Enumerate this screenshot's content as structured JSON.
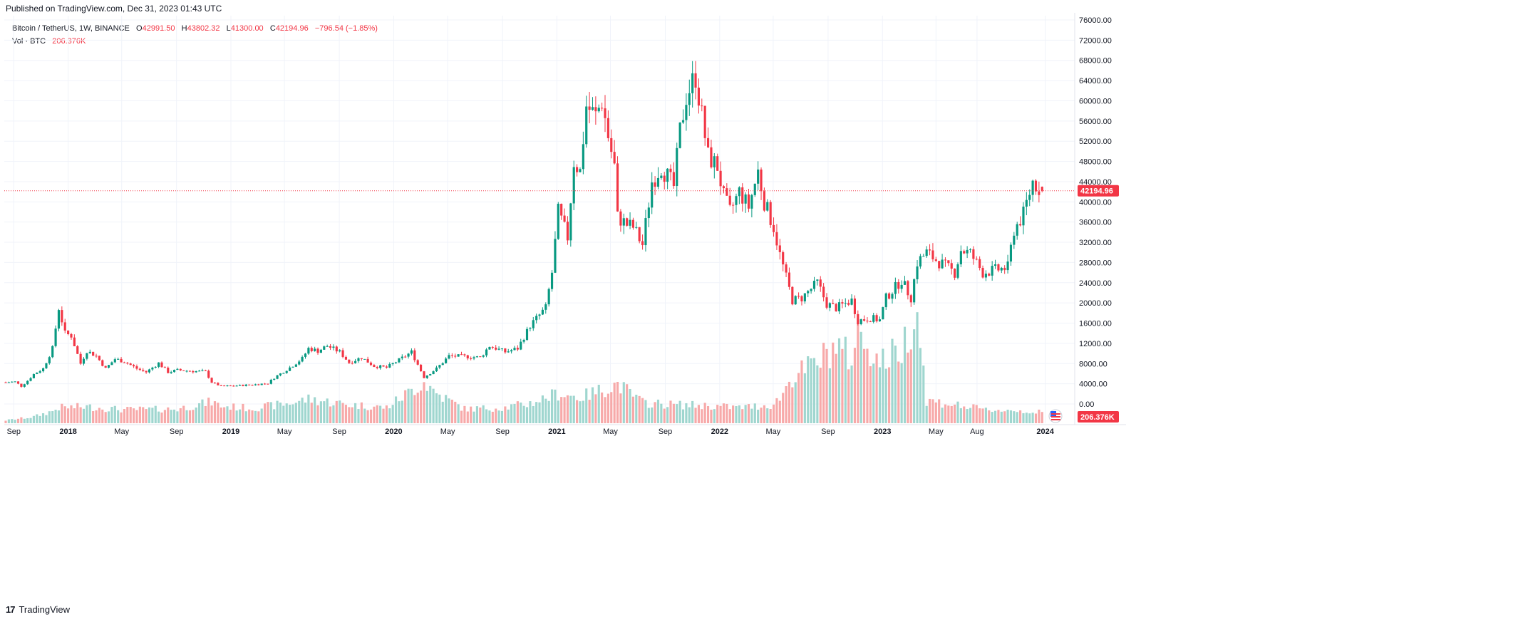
{
  "header": {
    "published": "Published on TradingView.com, Dec 31, 2023 01:43 UTC"
  },
  "legend": {
    "symbol": "Bitcoin / TetherUS, 1W, BINANCE",
    "o_label": "O",
    "o_value": "42991.50",
    "h_label": "H",
    "h_value": "43802.32",
    "l_label": "L",
    "l_value": "41300.00",
    "c_label": "C",
    "c_value": "42194.96",
    "change": "−796.54 (−1.85%)",
    "vol_label": "Vol · BTC",
    "vol_value": "206.376K"
  },
  "footer": {
    "brand": "TradingView",
    "logo_text": "17"
  },
  "colors": {
    "up": "#089981",
    "down": "#f23645",
    "vol_up": "#9fd6cf",
    "vol_down": "#f7a9a9",
    "grid": "#f0f3fa",
    "price_line": "#f23645"
  },
  "chart_data": {
    "type": "candlestick",
    "interval": "1W",
    "symbol": "BTCUSDT",
    "exchange": "BINANCE",
    "y_axis": {
      "ticks": [
        "76000.00",
        "72000.00",
        "68000.00",
        "64000.00",
        "60000.00",
        "56000.00",
        "52000.00",
        "48000.00",
        "44000.00",
        "40000.00",
        "36000.00",
        "32000.00",
        "28000.00",
        "24000.00",
        "20000.00",
        "16000.00",
        "12000.00",
        "8000.00",
        "4000.00",
        "0.00"
      ],
      "range": [
        0,
        76000
      ]
    },
    "x_axis": {
      "ticks": [
        "Sep",
        "2018",
        "May",
        "Sep",
        "2019",
        "May",
        "Sep",
        "2020",
        "May",
        "Sep",
        "2021",
        "May",
        "Sep",
        "2022",
        "May",
        "Sep",
        "2023",
        "May",
        "Aug",
        "2024"
      ],
      "bold": [
        "2018",
        "2019",
        "2020",
        "2021",
        "2022",
        "2023",
        "2024"
      ],
      "tick_dates": [
        "2017-09-01",
        "2018-01-01",
        "2018-05-01",
        "2018-09-01",
        "2019-01-01",
        "2019-05-01",
        "2019-09-01",
        "2020-01-01",
        "2020-05-01",
        "2020-09-01",
        "2021-01-01",
        "2021-05-01",
        "2021-09-01",
        "2022-01-01",
        "2022-05-01",
        "2022-09-01",
        "2023-01-01",
        "2023-05-01",
        "2023-08-01",
        "2024-01-01"
      ]
    },
    "last_price": 42194.96,
    "last_price_label": "42194.96",
    "last_volume_label": "206.376K",
    "price_path": [
      [
        "2017-08-14",
        4300
      ],
      [
        "2017-09-04",
        4400
      ],
      [
        "2017-09-18",
        3500
      ],
      [
        "2017-10-02",
        4600
      ],
      [
        "2017-10-16",
        5900
      ],
      [
        "2017-11-06",
        7000
      ],
      [
        "2017-11-27",
        11000
      ],
      [
        "2017-12-11",
        19000
      ],
      [
        "2017-12-25",
        14000
      ],
      [
        "2018-01-08",
        13500
      ],
      [
        "2018-01-29",
        8000
      ],
      [
        "2018-02-12",
        10500
      ],
      [
        "2018-03-05",
        9500
      ],
      [
        "2018-03-26",
        7000
      ],
      [
        "2018-04-16",
        8900
      ],
      [
        "2018-05-07",
        8400
      ],
      [
        "2018-06-04",
        7000
      ],
      [
        "2018-06-25",
        6300
      ],
      [
        "2018-07-23",
        8100
      ],
      [
        "2018-08-13",
        6300
      ],
      [
        "2018-09-03",
        6700
      ],
      [
        "2018-10-08",
        6500
      ],
      [
        "2018-11-05",
        6400
      ],
      [
        "2018-11-19",
        4300
      ],
      [
        "2018-12-10",
        3500
      ],
      [
        "2019-01-07",
        3600
      ],
      [
        "2019-02-18",
        3800
      ],
      [
        "2019-03-25",
        4100
      ],
      [
        "2019-04-08",
        5200
      ],
      [
        "2019-05-13",
        7200
      ],
      [
        "2019-06-10",
        9000
      ],
      [
        "2019-06-24",
        11000
      ],
      [
        "2019-07-15",
        10500
      ],
      [
        "2019-08-05",
        11500
      ],
      [
        "2019-09-02",
        10300
      ],
      [
        "2019-09-23",
        8200
      ],
      [
        "2019-10-21",
        9200
      ],
      [
        "2019-11-18",
        7500
      ],
      [
        "2019-12-16",
        7200
      ],
      [
        "2020-01-13",
        8700
      ],
      [
        "2020-02-10",
        10300
      ],
      [
        "2020-03-09",
        5300
      ],
      [
        "2020-04-06",
        7000
      ],
      [
        "2020-05-04",
        9500
      ],
      [
        "2020-06-08",
        9400
      ],
      [
        "2020-07-13",
        9200
      ],
      [
        "2020-08-03",
        11500
      ],
      [
        "2020-09-07",
        10300
      ],
      [
        "2020-10-05",
        11000
      ],
      [
        "2020-11-02",
        15500
      ],
      [
        "2020-12-07",
        19000
      ],
      [
        "2020-12-21",
        26000
      ],
      [
        "2021-01-04",
        38000
      ],
      [
        "2021-01-25",
        33000
      ],
      [
        "2021-02-08",
        48000
      ],
      [
        "2021-02-22",
        46000
      ],
      [
        "2021-03-08",
        59000
      ],
      [
        "2021-03-29",
        57000
      ],
      [
        "2021-04-12",
        60000
      ],
      [
        "2021-04-26",
        53000
      ],
      [
        "2021-05-10",
        47000
      ],
      [
        "2021-05-17",
        37000
      ],
      [
        "2021-06-07",
        35500
      ],
      [
        "2021-06-21",
        35000
      ],
      [
        "2021-07-12",
        31500
      ],
      [
        "2021-08-02",
        44000
      ],
      [
        "2021-08-23",
        47000
      ],
      [
        "2021-09-06",
        45000
      ],
      [
        "2021-09-20",
        43000
      ],
      [
        "2021-10-04",
        54000
      ],
      [
        "2021-10-18",
        61000
      ],
      [
        "2021-11-08",
        65000
      ],
      [
        "2021-11-22",
        57000
      ],
      [
        "2021-12-06",
        49000
      ],
      [
        "2021-12-27",
        47000
      ],
      [
        "2022-01-10",
        41000
      ],
      [
        "2022-01-24",
        38000
      ],
      [
        "2022-02-14",
        42000
      ],
      [
        "2022-03-07",
        39000
      ],
      [
        "2022-03-28",
        46000
      ],
      [
        "2022-04-11",
        40000
      ],
      [
        "2022-05-02",
        35000
      ],
      [
        "2022-05-16",
        29500
      ],
      [
        "2022-06-13",
        20500
      ],
      [
        "2022-07-04",
        21000
      ],
      [
        "2022-08-08",
        24000
      ],
      [
        "2022-08-29",
        19800
      ],
      [
        "2022-09-19",
        19000
      ],
      [
        "2022-10-24",
        20500
      ],
      [
        "2022-11-07",
        16500
      ],
      [
        "2022-12-05",
        17000
      ],
      [
        "2022-12-26",
        16600
      ],
      [
        "2023-01-09",
        21000
      ],
      [
        "2023-02-13",
        24500
      ],
      [
        "2023-03-06",
        21000
      ],
      [
        "2023-03-20",
        28000
      ],
      [
        "2023-04-10",
        30000
      ],
      [
        "2023-05-01",
        28500
      ],
      [
        "2023-06-12",
        26000
      ],
      [
        "2023-06-26",
        30500
      ],
      [
        "2023-07-17",
        29800
      ],
      [
        "2023-08-14",
        26000
      ],
      [
        "2023-09-11",
        26500
      ],
      [
        "2023-10-09",
        27000
      ],
      [
        "2023-10-23",
        34500
      ],
      [
        "2023-11-13",
        37500
      ],
      [
        "2023-12-04",
        44000
      ],
      [
        "2023-12-25",
        42194.96
      ]
    ],
    "volume_path": [
      [
        "2017-08-14",
        400
      ],
      [
        "2017-10-16",
        900
      ],
      [
        "2017-11-27",
        1700
      ],
      [
        "2017-12-11",
        2200
      ],
      [
        "2018-02-12",
        2300
      ],
      [
        "2018-05-07",
        1900
      ],
      [
        "2018-09-03",
        2000
      ],
      [
        "2018-11-19",
        3000
      ],
      [
        "2018-12-10",
        2400
      ],
      [
        "2019-02-18",
        2100
      ],
      [
        "2019-05-13",
        2800
      ],
      [
        "2019-06-24",
        3400
      ],
      [
        "2019-09-23",
        2600
      ],
      [
        "2019-12-16",
        2200
      ],
      [
        "2020-03-09",
        5800
      ],
      [
        "2020-04-06",
        4200
      ],
      [
        "2020-06-08",
        2000
      ],
      [
        "2020-09-07",
        2200
      ],
      [
        "2020-11-02",
        2800
      ],
      [
        "2021-01-04",
        4200
      ],
      [
        "2021-02-22",
        3600
      ],
      [
        "2021-05-17",
        5500
      ],
      [
        "2021-07-12",
        2900
      ],
      [
        "2021-09-20",
        2600
      ],
      [
        "2021-11-22",
        2500
      ],
      [
        "2022-02-14",
        2200
      ],
      [
        "2022-05-02",
        2600
      ],
      [
        "2022-05-16",
        3600
      ],
      [
        "2022-06-13",
        6500
      ],
      [
        "2022-08-08",
        8500
      ],
      [
        "2022-09-19",
        11000
      ],
      [
        "2022-10-24",
        9000
      ],
      [
        "2022-11-07",
        13000
      ],
      [
        "2022-12-26",
        8500
      ],
      [
        "2023-02-13",
        10500
      ],
      [
        "2023-03-20",
        16000
      ],
      [
        "2023-04-10",
        3200
      ],
      [
        "2023-06-12",
        2600
      ],
      [
        "2023-08-14",
        1900
      ],
      [
        "2023-10-23",
        1800
      ],
      [
        "2023-12-25",
        1500
      ]
    ]
  }
}
